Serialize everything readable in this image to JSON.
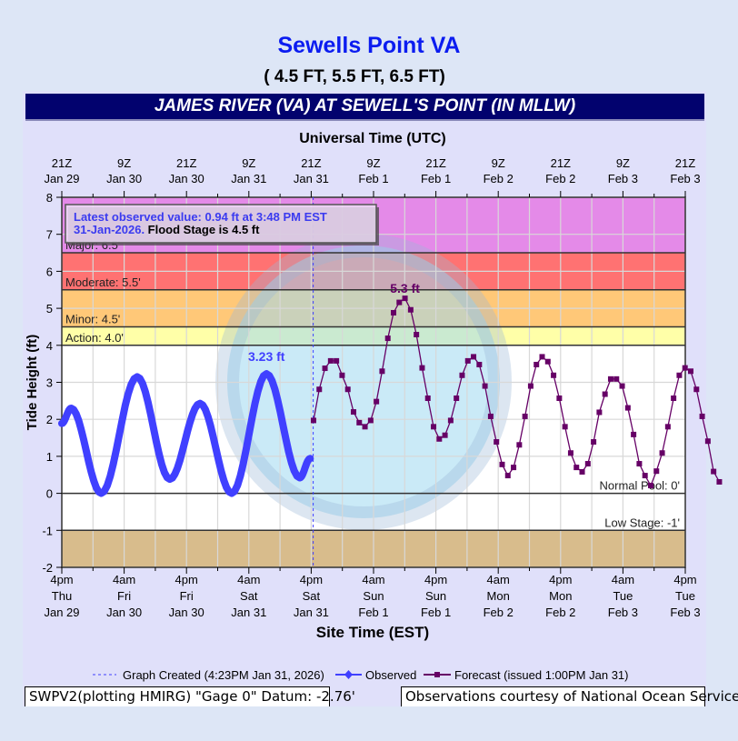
{
  "header": {
    "title": "Sewells Point VA",
    "subtitle": "( 4.5 FT, 5.5 FT, 6.5 FT)"
  },
  "chart_data": {
    "type": "line",
    "title": "JAMES RIVER (VA) AT SEWELL'S POINT (IN MLLW)",
    "top_xlabel": "Universal Time (UTC)",
    "xlabel": "Site Time (EST)",
    "ylabel": "Tide Height (ft)",
    "xlim": [
      "2026-01-29T16:00",
      "2026-02-03T16:00"
    ],
    "ylim": [
      -2,
      8
    ],
    "yticks": [
      -2,
      -1,
      0,
      1,
      2,
      3,
      4,
      5,
      6,
      7,
      8
    ],
    "grid": true,
    "top_ticks": [
      [
        "21Z",
        "Jan 29"
      ],
      [
        "9Z",
        "Jan 30"
      ],
      [
        "21Z",
        "Jan 30"
      ],
      [
        "9Z",
        "Jan 31"
      ],
      [
        "21Z",
        "Jan 31"
      ],
      [
        "9Z",
        "Feb  1"
      ],
      [
        "21Z",
        "Feb  1"
      ],
      [
        "9Z",
        "Feb  2"
      ],
      [
        "21Z",
        "Feb  2"
      ],
      [
        "9Z",
        "Feb  3"
      ],
      [
        "21Z",
        "Feb  3"
      ]
    ],
    "bottom_ticks": [
      [
        "4pm",
        "Thu",
        "Jan 29"
      ],
      [
        "4am",
        "Fri",
        "Jan 30"
      ],
      [
        "4pm",
        "Fri",
        "Jan 30"
      ],
      [
        "4am",
        "Sat",
        "Jan 31"
      ],
      [
        "4pm",
        "Sat",
        "Jan 31"
      ],
      [
        "4am",
        "Sun",
        "Feb 1"
      ],
      [
        "4pm",
        "Sun",
        "Feb 1"
      ],
      [
        "4am",
        "Mon",
        "Feb 2"
      ],
      [
        "4pm",
        "Mon",
        "Feb 2"
      ],
      [
        "4am",
        "Tue",
        "Feb 3"
      ],
      [
        "4pm",
        "Tue",
        "Feb 3"
      ]
    ],
    "stages": [
      {
        "label": "Major: 6.5'",
        "from": 6.5,
        "to": 8,
        "color": "#e48ae8"
      },
      {
        "label": "Moderate: 5.5'",
        "from": 5.5,
        "to": 6.5,
        "color": "#ff7272"
      },
      {
        "label": "Minor: 4.5'",
        "from": 4.5,
        "to": 5.5,
        "color": "#ffc878"
      },
      {
        "label": "Action: 4.0'",
        "from": 4.0,
        "to": 4.5,
        "color": "#ffffa8"
      },
      {
        "label": "Normal Pool: 0'",
        "from": 0,
        "to": 0,
        "color": "#ffffff"
      },
      {
        "label": "Low Stage: -1'",
        "from": -2,
        "to": -1,
        "color": "#d8bc8c"
      }
    ],
    "graph_created": "2026-01-31T16:23",
    "series": [
      {
        "name": "Observed",
        "color": "#4040ff",
        "points": [
          [
            "2026-01-29T16:00",
            1.89
          ],
          [
            "2026-01-29T17:48",
            2.3
          ],
          [
            "2026-01-29T23:36",
            0.0
          ],
          [
            "2026-01-30T06:30",
            3.15
          ],
          [
            "2026-01-30T12:48",
            0.38
          ],
          [
            "2026-01-30T18:36",
            2.43
          ],
          [
            "2026-01-31T00:42",
            0.0
          ],
          [
            "2026-01-31T07:24",
            3.23
          ],
          [
            "2026-01-31T13:48",
            0.42
          ],
          [
            "2026-01-31T15:48",
            0.94
          ]
        ],
        "peak_label": "3.23 ft"
      },
      {
        "name": "Forecast (issued 1:00PM Jan 31)",
        "color": "#660066",
        "start": "2026-01-31T16:27",
        "step_minutes": 66,
        "values": [
          1.97,
          2.81,
          3.38,
          3.58,
          3.58,
          3.19,
          2.81,
          2.2,
          1.91,
          1.8,
          1.97,
          2.48,
          3.3,
          4.19,
          4.88,
          5.16,
          5.27,
          4.96,
          4.29,
          3.39,
          2.57,
          1.8,
          1.47,
          1.57,
          1.97,
          2.57,
          3.19,
          3.58,
          3.69,
          3.48,
          2.9,
          2.08,
          1.39,
          0.78,
          0.48,
          0.7,
          1.31,
          2.08,
          2.9,
          3.48,
          3.69,
          3.56,
          3.19,
          2.57,
          1.8,
          1.09,
          0.7,
          0.58,
          0.8,
          1.39,
          2.19,
          2.68,
          3.09,
          3.09,
          2.9,
          2.31,
          1.59,
          0.8,
          0.48,
          0.21,
          0.6,
          1.09,
          1.8,
          2.57,
          3.19,
          3.39,
          3.3,
          2.81,
          2.08,
          1.41,
          0.59,
          0.31
        ],
        "peak_label": "5.3 ft"
      }
    ],
    "annotation": {
      "line1": "Latest observed value: 0.94 ft at 3:48 PM EST",
      "line2_blue": "31-Jan-2026.",
      "line2_black": " Flood Stage is 4.5 ft"
    },
    "legend": {
      "created": "Graph Created (4:23PM Jan 31, 2026)",
      "observed": "Observed",
      "forecast": "Forecast (issued 1:00PM Jan 31)"
    }
  },
  "footer": {
    "left": "SWPV2(plotting HMIRG) \"Gage 0\" Datum: -2.76'",
    "right": "Observations courtesy of National Ocean Service"
  }
}
